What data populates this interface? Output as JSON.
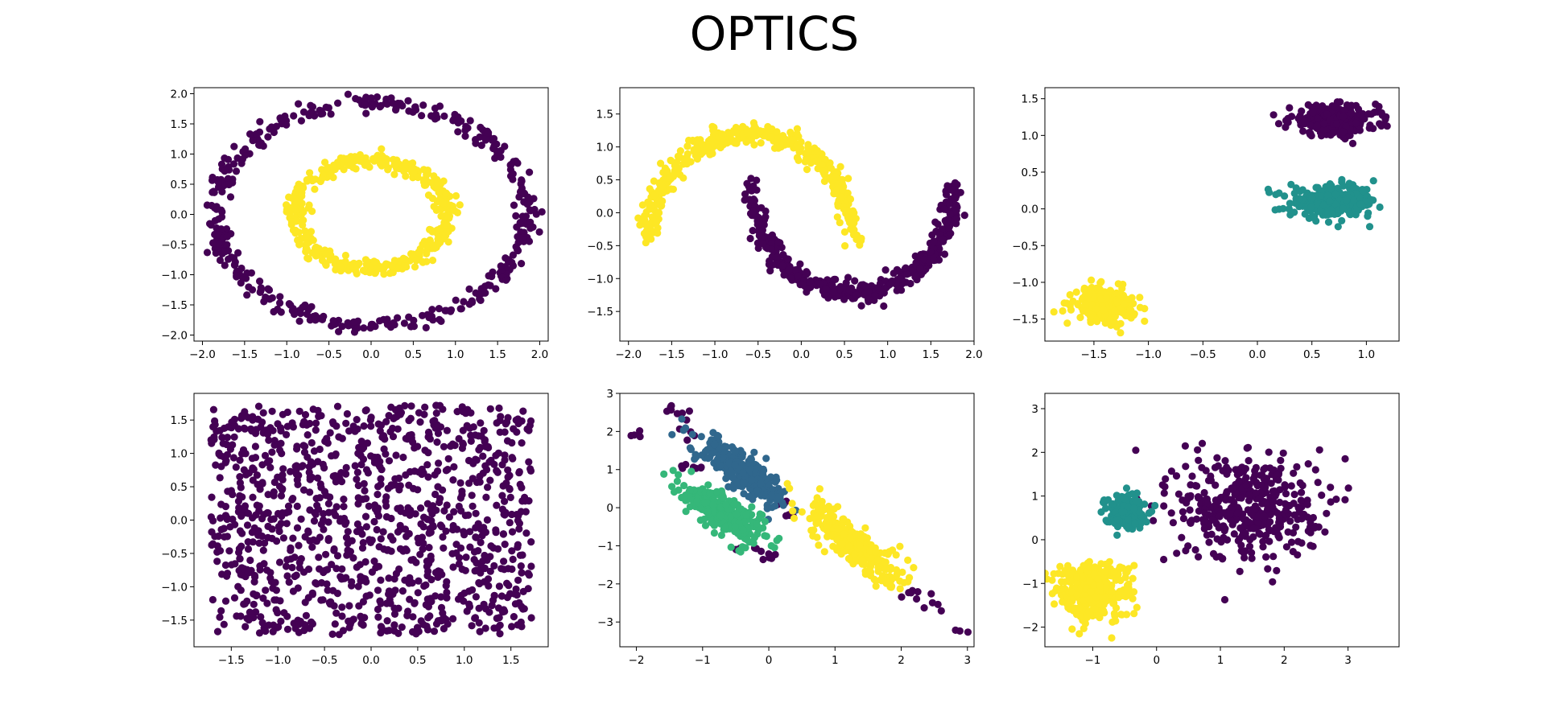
{
  "figure": {
    "title": "OPTICS"
  },
  "palette": {
    "axis_color": "#000000",
    "cluster_colors_viridis": [
      "#440154",
      "#30678d",
      "#21918c",
      "#35b779",
      "#fde725"
    ]
  },
  "chart_data": [
    {
      "type": "scatter",
      "name": "circles",
      "xlim": [
        -2.1,
        2.1
      ],
      "ylim": [
        -2.1,
        2.1
      ],
      "xticks": [
        "−2.0",
        "−1.5",
        "−1.0",
        "−0.5",
        "0.0",
        "0.5",
        "1.0",
        "1.5",
        "2.0"
      ],
      "xtick_values": [
        -2.0,
        -1.5,
        -1.0,
        -0.5,
        0.0,
        0.5,
        1.0,
        1.5,
        2.0
      ],
      "yticks": [
        "−2.0",
        "−1.5",
        "−1.0",
        "−0.5",
        "0.0",
        "0.5",
        "1.0",
        "1.5",
        "2.0"
      ],
      "ytick_values": [
        -2.0,
        -1.5,
        -1.0,
        -0.5,
        0.0,
        0.5,
        1.0,
        1.5,
        2.0
      ],
      "grid": false,
      "clusters": [
        {
          "label": 0,
          "color": "#440154",
          "shape": "ring",
          "center": [
            0,
            0
          ],
          "radius": 1.85,
          "count": 420
        },
        {
          "label": 1,
          "color": "#fde725",
          "shape": "ring",
          "center": [
            0,
            0
          ],
          "radius": 0.9,
          "count": 420
        }
      ]
    },
    {
      "type": "scatter",
      "name": "moons",
      "xlim": [
        -2.1,
        2.0
      ],
      "ylim": [
        -1.95,
        1.9
      ],
      "xticks": [
        "−2.0",
        "−1.5",
        "−1.0",
        "−0.5",
        "0.0",
        "0.5",
        "1.0",
        "1.5",
        "2.0"
      ],
      "xtick_values": [
        -2.0,
        -1.5,
        -1.0,
        -0.5,
        0.0,
        0.5,
        1.0,
        1.5,
        2.0
      ],
      "yticks": [
        "−1.5",
        "−1.0",
        "−0.5",
        "0.0",
        "0.5",
        "1.0",
        "1.5"
      ],
      "ytick_values": [
        -1.5,
        -1.0,
        -0.5,
        0.0,
        0.5,
        1.0,
        1.5
      ],
      "grid": false,
      "clusters": [
        {
          "label": 0,
          "color": "#fde725",
          "shape": "upper_moon",
          "count": 420
        },
        {
          "label": 1,
          "color": "#440154",
          "shape": "lower_moon",
          "count": 420
        }
      ]
    },
    {
      "type": "scatter",
      "name": "varied_blobs",
      "xlim": [
        -1.95,
        1.3
      ],
      "ylim": [
        -1.8,
        1.65
      ],
      "xticks": [
        "−1.5",
        "−1.0",
        "−0.5",
        "0.0",
        "0.5",
        "1.0"
      ],
      "xtick_values": [
        -1.5,
        -1.0,
        -0.5,
        0.0,
        0.5,
        1.0
      ],
      "yticks": [
        "−1.5",
        "−1.0",
        "−0.5",
        "0.0",
        "0.5",
        "1.0",
        "1.5"
      ],
      "ytick_values": [
        -1.5,
        -1.0,
        -0.5,
        0.0,
        0.5,
        1.0,
        1.5
      ],
      "grid": false,
      "clusters": [
        {
          "label": 0,
          "color": "#440154",
          "shape": "blob",
          "center": [
            0.7,
            1.2
          ],
          "spread": [
            0.2,
            0.1
          ],
          "count": 300
        },
        {
          "label": 1,
          "color": "#21918c",
          "shape": "blob",
          "center": [
            0.7,
            0.1
          ],
          "spread": [
            0.2,
            0.1
          ],
          "count": 300
        },
        {
          "label": 2,
          "color": "#fde725",
          "shape": "blob",
          "center": [
            -1.4,
            -1.3
          ],
          "spread": [
            0.14,
            0.11
          ],
          "count": 240
        }
      ]
    },
    {
      "type": "scatter",
      "name": "no_structure",
      "xlim": [
        -1.9,
        1.9
      ],
      "ylim": [
        -1.9,
        1.9
      ],
      "xticks": [
        "−1.5",
        "−1.0",
        "−0.5",
        "0.0",
        "0.5",
        "1.0",
        "1.5"
      ],
      "xtick_values": [
        -1.5,
        -1.0,
        -0.5,
        0.0,
        0.5,
        1.0,
        1.5
      ],
      "yticks": [
        "−1.5",
        "−1.0",
        "−0.5",
        "0.0",
        "0.5",
        "1.0",
        "1.5"
      ],
      "ytick_values": [
        -1.5,
        -1.0,
        -0.5,
        0.0,
        0.5,
        1.0,
        1.5
      ],
      "grid": false,
      "clusters": [
        {
          "label": 0,
          "color": "#440154",
          "shape": "uniform",
          "xrange": [
            -1.72,
            1.72
          ],
          "yrange": [
            -1.72,
            1.72
          ],
          "count": 1100
        }
      ]
    },
    {
      "type": "scatter",
      "name": "anisotropic",
      "xlim": [
        -2.25,
        3.1
      ],
      "ylim": [
        -3.65,
        3.0
      ],
      "xticks": [
        "−2",
        "−1",
        "0",
        "1",
        "2",
        "3"
      ],
      "xtick_values": [
        -2,
        -1,
        0,
        1,
        2,
        3
      ],
      "yticks": [
        "−3",
        "−2",
        "−1",
        "0",
        "1",
        "2",
        "3"
      ],
      "ytick_values": [
        -3,
        -2,
        -1,
        0,
        1,
        2,
        3
      ],
      "grid": false,
      "clusters": [
        {
          "label": 0,
          "color": "#440154",
          "shape": "outliers",
          "count": 60
        },
        {
          "label": 1,
          "color": "#30678d",
          "shape": "line",
          "from": [
            -1.1,
            1.95
          ],
          "to": [
            0.3,
            -0.05
          ],
          "width": 0.16,
          "count": 280
        },
        {
          "label": 2,
          "color": "#35b779",
          "shape": "line",
          "from": [
            -1.3,
            0.7
          ],
          "to": [
            0.0,
            -1.0
          ],
          "width": 0.16,
          "count": 280
        },
        {
          "label": 3,
          "color": "#fde725",
          "shape": "line",
          "from": [
            0.55,
            0.2
          ],
          "to": [
            2.0,
            -2.1
          ],
          "width": 0.17,
          "count": 280
        }
      ]
    },
    {
      "type": "scatter",
      "name": "blobs",
      "xlim": [
        -1.75,
        3.8
      ],
      "ylim": [
        -2.45,
        3.35
      ],
      "xticks": [
        "−1",
        "0",
        "1",
        "2",
        "3"
      ],
      "xtick_values": [
        -1,
        0,
        1,
        2,
        3
      ],
      "yticks": [
        "−2",
        "−1",
        "0",
        "1",
        "2",
        "3"
      ],
      "ytick_values": [
        -2,
        -1,
        0,
        1,
        2,
        3
      ],
      "grid": false,
      "clusters": [
        {
          "label": 0,
          "color": "#440154",
          "shape": "blob",
          "center": [
            1.45,
            0.75
          ],
          "spread": [
            0.55,
            0.6
          ],
          "count": 420
        },
        {
          "label": 1,
          "color": "#21918c",
          "shape": "blob",
          "center": [
            -0.5,
            0.65
          ],
          "spread": [
            0.16,
            0.18
          ],
          "count": 180
        },
        {
          "label": 2,
          "color": "#fde725",
          "shape": "blob",
          "center": [
            -1.0,
            -1.15
          ],
          "spread": [
            0.3,
            0.32
          ],
          "count": 360
        }
      ]
    }
  ]
}
